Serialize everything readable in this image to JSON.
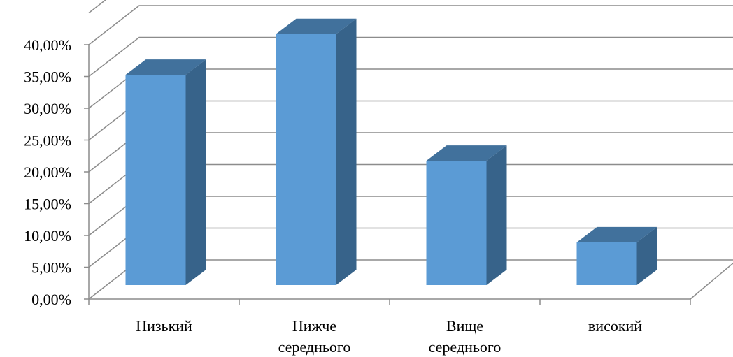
{
  "chart_data": {
    "type": "bar",
    "categories": [
      "Низький",
      "Нижче\nсереднього",
      "Вище\nсереднього",
      "високий"
    ],
    "values": [
      33.5,
      40.0,
      19.8,
      6.8
    ],
    "ylim": [
      0,
      40
    ],
    "yticks": [
      0,
      5,
      10,
      15,
      20,
      25,
      30,
      35,
      40
    ],
    "ytick_labels": [
      "0,00%",
      "5,00%",
      "10,00%",
      "15,00%",
      "20,00%",
      "25,00%",
      "30,00%",
      "35,00%",
      "40,00%"
    ],
    "title": "",
    "xlabel": "",
    "ylabel": "",
    "grid": true,
    "legend": false,
    "three_d": true,
    "colors": {
      "front": "#5b9bd5",
      "top": "#41719c",
      "side": "#37638a"
    }
  }
}
